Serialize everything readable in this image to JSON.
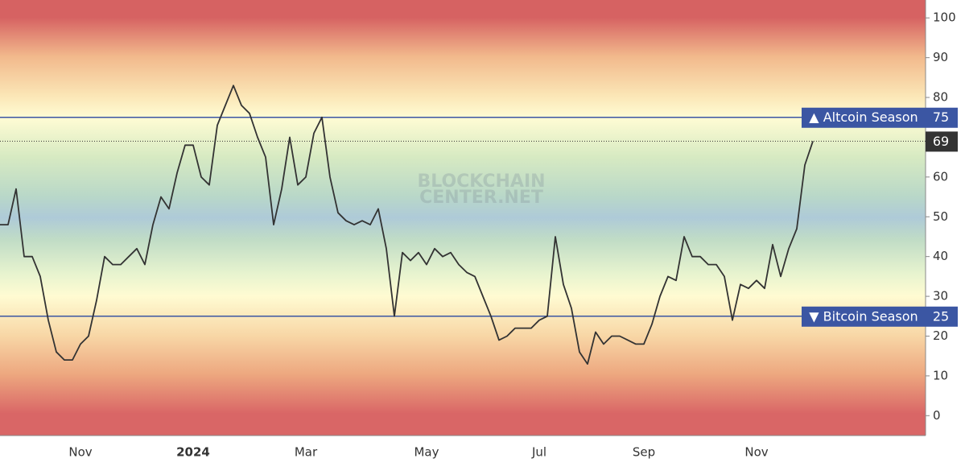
{
  "chart_data": {
    "type": "line",
    "categories": [
      null,
      null,
      null,
      null,
      null,
      null,
      null,
      null,
      null,
      null,
      "Nov",
      null,
      null,
      null,
      null,
      null,
      null,
      null,
      null,
      null,
      null,
      null,
      null,
      null,
      "2024",
      null,
      null,
      null,
      null,
      null,
      null,
      null,
      null,
      null,
      null,
      null,
      null,
      null,
      "Mar",
      null,
      null,
      null,
      null,
      null,
      null,
      null,
      null,
      null,
      null,
      null,
      null,
      null,
      null,
      "May",
      null,
      null,
      null,
      null,
      null,
      null,
      null,
      null,
      null,
      null,
      null,
      null,
      null,
      "Jul",
      null,
      null,
      null,
      null,
      null,
      null,
      null,
      null,
      null,
      null,
      null,
      null,
      "Sep",
      null,
      null,
      null,
      null,
      null,
      null,
      null,
      null,
      null,
      null,
      null,
      null,
      null,
      "Nov",
      null,
      null,
      null,
      null,
      null,
      null,
      null,
      null,
      null,
      null,
      null,
      null,
      null,
      null,
      null,
      null,
      null,
      null,
      null,
      null,
      null
    ],
    "values": [
      48,
      48,
      57,
      40,
      40,
      35,
      24,
      16,
      14,
      14,
      18,
      20,
      29,
      40,
      38,
      38,
      40,
      42,
      38,
      48,
      55,
      52,
      61,
      68,
      68,
      60,
      58,
      73,
      78,
      83,
      78,
      76,
      70,
      65,
      48,
      57,
      70,
      58,
      60,
      71,
      75,
      60,
      51,
      49,
      48,
      49,
      48,
      52,
      42,
      25,
      41,
      39,
      41,
      38,
      42,
      40,
      41,
      38,
      36,
      35,
      30,
      25,
      19,
      20,
      22,
      22,
      22,
      24,
      25,
      45,
      33,
      27,
      16,
      13,
      21,
      18,
      20,
      20,
      19,
      18,
      18,
      23,
      30,
      35,
      34,
      45,
      40,
      40,
      38,
      38,
      35,
      24,
      33,
      32,
      34,
      32,
      43,
      35,
      42,
      47,
      63,
      69,
      null,
      null,
      null,
      null,
      null,
      null,
      null,
      null,
      null,
      null,
      null,
      null,
      null,
      null
    ],
    "color": "#333333",
    "ylim": [
      -5,
      104.5
    ],
    "yticks": [
      0,
      10,
      20,
      30,
      40,
      50,
      60,
      80,
      90,
      100
    ],
    "reference_lines": [
      {
        "value": 75,
        "label": "▲ Altcoin Season"
      },
      {
        "value": 25,
        "label": "▼ Bitcoin Season"
      }
    ],
    "reference_color": "#3b56a3",
    "watermark": [
      "BLOCKCHAIN",
      "CENTER.NET"
    ]
  }
}
